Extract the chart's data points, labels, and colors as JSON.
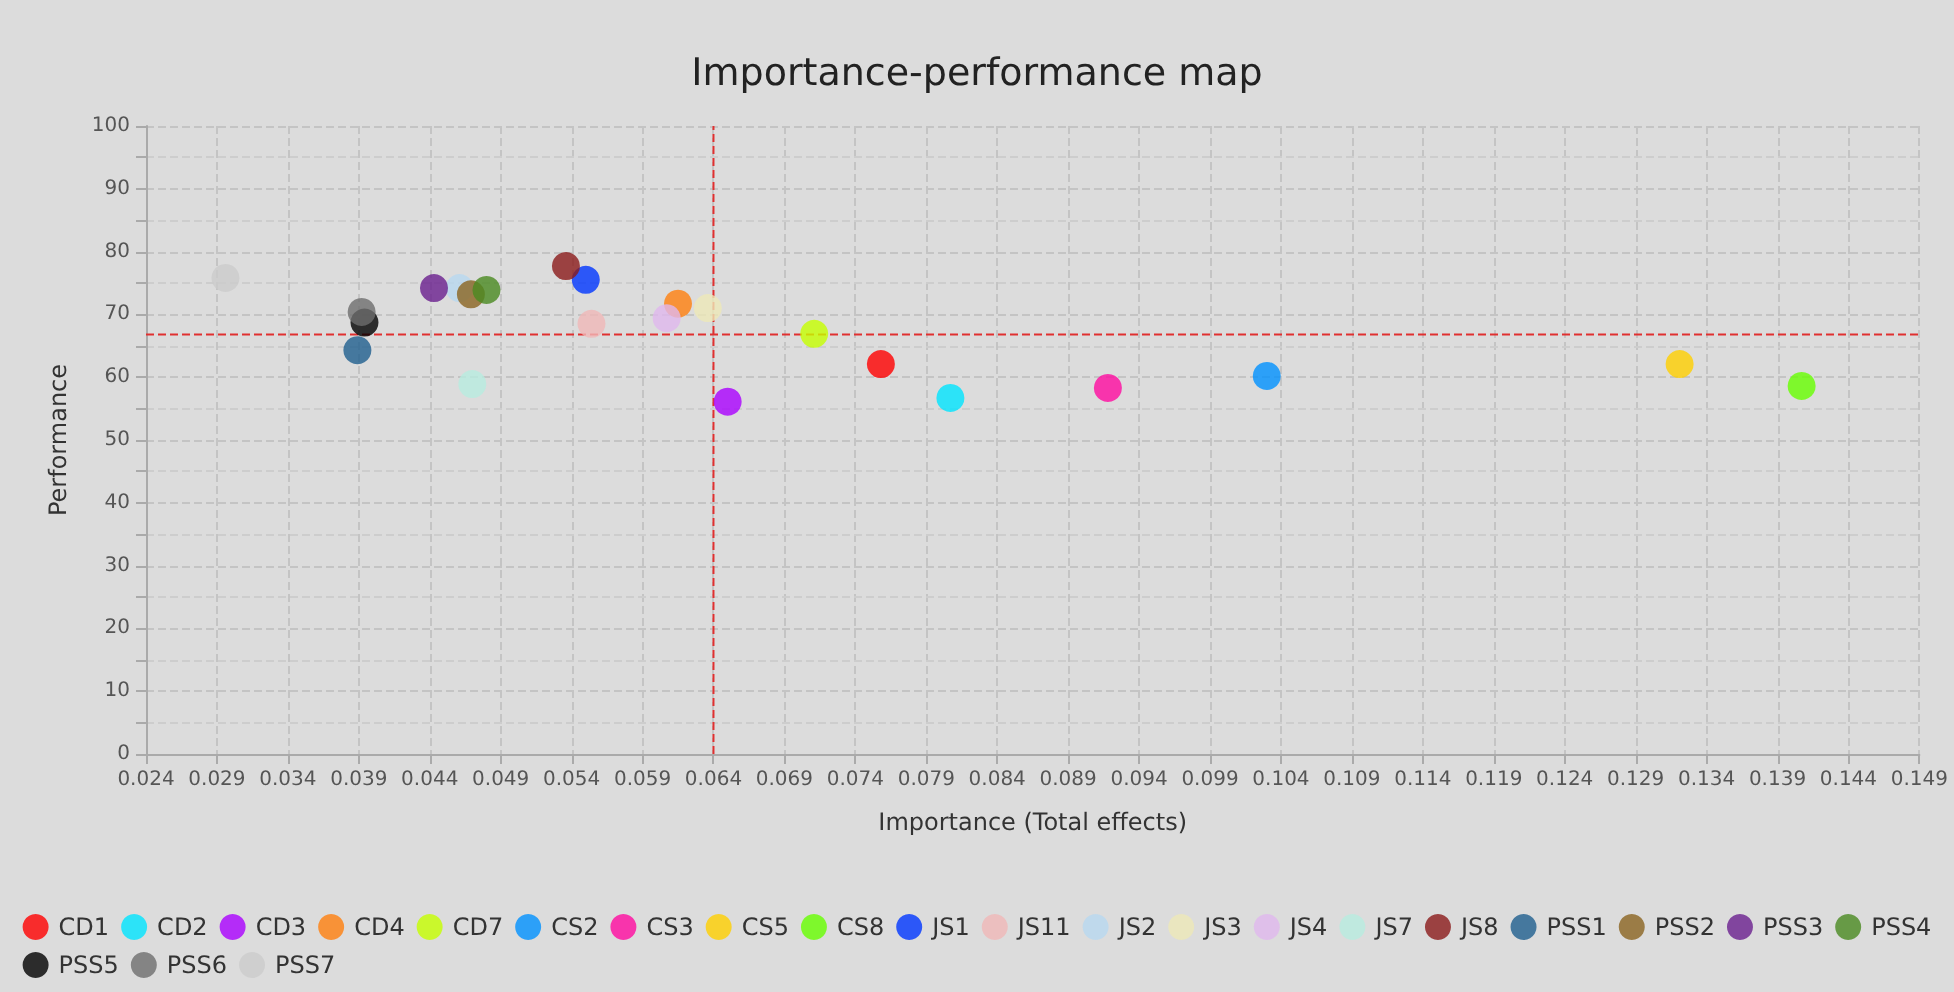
{
  "chart_data": {
    "type": "scatter",
    "title": "Importance-performance map",
    "xlabel": "Importance (Total effects)",
    "ylabel": "Performance",
    "xlim": [
      0.024,
      0.149
    ],
    "xticks": [
      0.024,
      0.029,
      0.034,
      0.039,
      0.044,
      0.049,
      0.054,
      0.059,
      0.064,
      0.069,
      0.074,
      0.079,
      0.084,
      0.089,
      0.094,
      0.099,
      0.104,
      0.109,
      0.114,
      0.119,
      0.124,
      0.129,
      0.134,
      0.139,
      0.144,
      0.149
    ],
    "ylim": [
      0,
      100
    ],
    "yticks": [
      0,
      10,
      20,
      30,
      40,
      50,
      60,
      70,
      80,
      90,
      100
    ],
    "grid": true,
    "legend": "bottom",
    "marker": "circle",
    "ref_lines": [
      {
        "axis": "x",
        "value": 0.064,
        "color": "#e03030",
        "line_style": "dashed"
      },
      {
        "axis": "y",
        "value": 66.8,
        "color": "#e03030",
        "line_style": "dashed"
      }
    ],
    "series": [
      {
        "name": "CD1",
        "color": "#ff0000",
        "x": [
          0.0758
        ],
        "values": [
          62.1
        ]
      },
      {
        "name": "CD2",
        "color": "#00e5ff",
        "x": [
          0.0807
        ],
        "values": [
          56.7
        ]
      },
      {
        "name": "CD3",
        "color": "#aa00ff",
        "x": [
          0.065
        ],
        "values": [
          56.1
        ]
      },
      {
        "name": "CD4",
        "color": "#ff7f0e",
        "x": [
          0.0615
        ],
        "values": [
          71.7
        ]
      },
      {
        "name": "CD7",
        "color": "#c6ff00",
        "x": [
          0.0711
        ],
        "values": [
          66.9
        ]
      },
      {
        "name": "CS2",
        "color": "#0091ff",
        "x": [
          0.103
        ],
        "values": [
          60.2
        ]
      },
      {
        "name": "CS3",
        "color": "#ff0aa0",
        "x": [
          0.0918
        ],
        "values": [
          58.3
        ]
      },
      {
        "name": "CS5",
        "color": "#ffd000",
        "x": [
          0.1321
        ],
        "values": [
          62.1
        ]
      },
      {
        "name": "CS8",
        "color": "#66ff00",
        "x": [
          0.1407
        ],
        "values": [
          58.6
        ]
      },
      {
        "name": "JS1",
        "color": "#0036ff",
        "x": [
          0.055
        ],
        "values": [
          75.5
        ]
      },
      {
        "name": "JS11",
        "color": "#f0b8b8",
        "x": [
          0.0554
        ],
        "values": [
          68.5
        ]
      },
      {
        "name": "JS2",
        "color": "#b8d8f0",
        "x": [
          0.0461
        ],
        "values": [
          74.2
        ]
      },
      {
        "name": "JS3",
        "color": "#ede8b8",
        "x": [
          0.0636
        ],
        "values": [
          71.0
        ]
      },
      {
        "name": "JS4",
        "color": "#e0b8ee",
        "x": [
          0.0607
        ],
        "values": [
          69.4
        ]
      },
      {
        "name": "JS7",
        "color": "#b8ece0",
        "x": [
          0.047
        ],
        "values": [
          58.9
        ]
      },
      {
        "name": "JS8",
        "color": "#8b1a1a",
        "x": [
          0.0536
        ],
        "values": [
          77.7
        ]
      },
      {
        "name": "PSS1",
        "color": "#1f5f8f",
        "x": [
          0.0389
        ],
        "values": [
          64.3
        ]
      },
      {
        "name": "PSS2",
        "color": "#8b6420",
        "x": [
          0.0469
        ],
        "values": [
          73.2
        ]
      },
      {
        "name": "PSS3",
        "color": "#6a1f8f",
        "x": [
          0.0443
        ],
        "values": [
          74.2
        ]
      },
      {
        "name": "PSS4",
        "color": "#4a8a20",
        "x": [
          0.048
        ],
        "values": [
          73.9
        ]
      },
      {
        "name": "PSS5",
        "color": "#000000",
        "x": [
          0.0394
        ],
        "values": [
          68.7
        ]
      },
      {
        "name": "PSS6",
        "color": "#6e6e6e",
        "x": [
          0.0392
        ],
        "values": [
          70.4
        ]
      },
      {
        "name": "PSS7",
        "color": "#cccccc",
        "x": [
          0.0296
        ],
        "values": [
          75.8
        ]
      }
    ]
  }
}
